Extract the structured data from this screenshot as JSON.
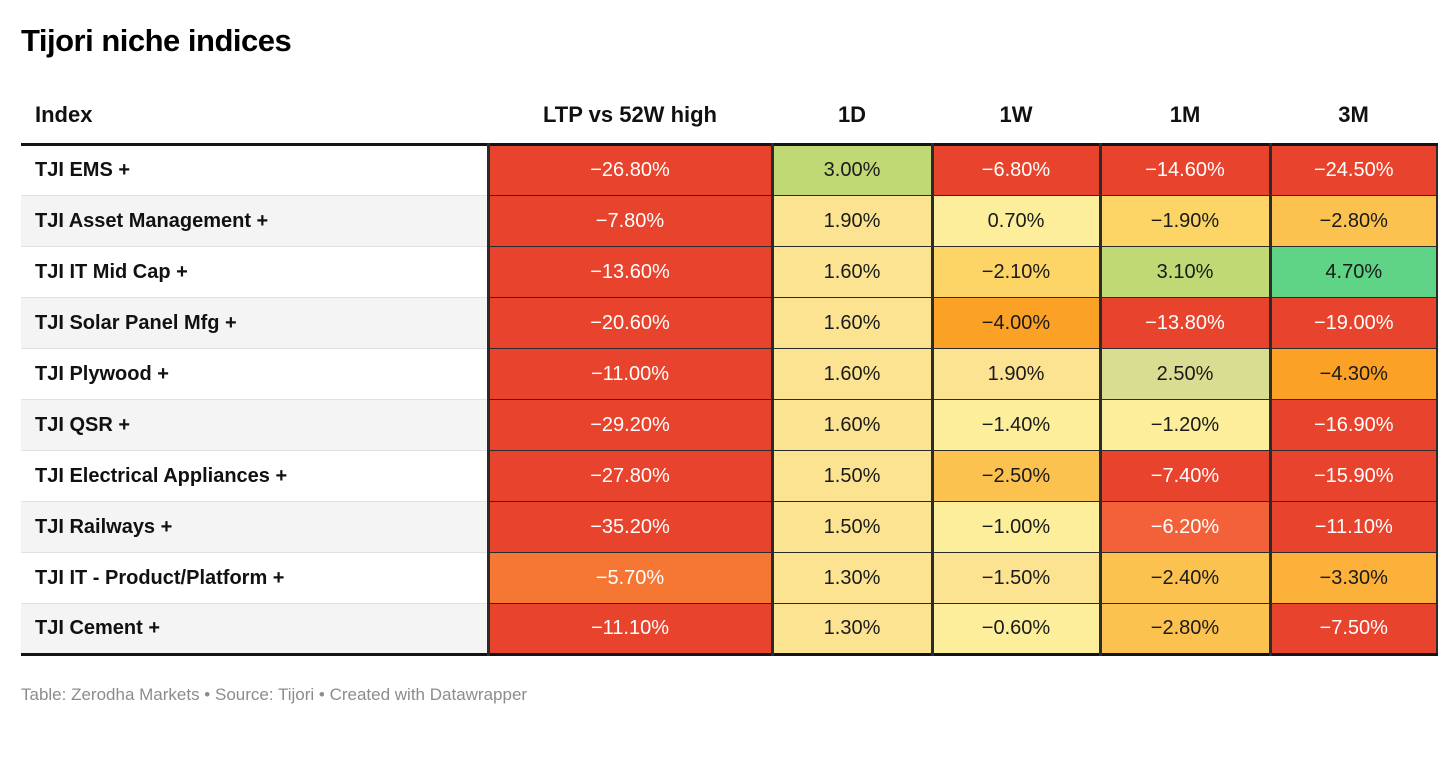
{
  "title": "Tijori niche indices",
  "footer": "Table: Zerodha Markets • Source: Tijori • Created with Datawrapper",
  "palette": {
    "strong_negative_red": "#e8432d",
    "red_orange": "#f2613a",
    "orange_red": "#f57733",
    "orange": "#fba226",
    "orange_amber": "#fcb13a",
    "amber_orange": "#fcc250",
    "amber": "#fcd566",
    "light_amber": "#fce391",
    "pale_yellow": "#fcee9a",
    "pale_yellow_green": "#d9dd92",
    "yellow_green": "#c0d975",
    "strong_positive_green": "#5fd487",
    "text_dark": "#1a1a1a",
    "text_light": "#ffffff"
  },
  "table": {
    "columns": [
      "Index",
      "LTP vs 52W high",
      "1D",
      "1W",
      "1M",
      "3M"
    ],
    "rows": [
      {
        "index": "TJI EMS +",
        "cells": [
          {
            "text": "−26.80%",
            "bg": "#e8432d",
            "fg": "#ffffff"
          },
          {
            "text": "3.00%",
            "bg": "#c0d975",
            "fg": "#1a1a1a"
          },
          {
            "text": "−6.80%",
            "bg": "#e8432d",
            "fg": "#ffffff"
          },
          {
            "text": "−14.60%",
            "bg": "#e8432d",
            "fg": "#ffffff"
          },
          {
            "text": "−24.50%",
            "bg": "#e8432d",
            "fg": "#ffffff"
          }
        ]
      },
      {
        "index": "TJI Asset Management +",
        "cells": [
          {
            "text": "−7.80%",
            "bg": "#e8432d",
            "fg": "#ffffff"
          },
          {
            "text": "1.90%",
            "bg": "#fce391",
            "fg": "#1a1a1a"
          },
          {
            "text": "0.70%",
            "bg": "#fcee9a",
            "fg": "#1a1a1a"
          },
          {
            "text": "−1.90%",
            "bg": "#fcd566",
            "fg": "#1a1a1a"
          },
          {
            "text": "−2.80%",
            "bg": "#fcc250",
            "fg": "#1a1a1a"
          }
        ]
      },
      {
        "index": "TJI IT Mid Cap +",
        "cells": [
          {
            "text": "−13.60%",
            "bg": "#e8432d",
            "fg": "#ffffff"
          },
          {
            "text": "1.60%",
            "bg": "#fce391",
            "fg": "#1a1a1a"
          },
          {
            "text": "−2.10%",
            "bg": "#fcd566",
            "fg": "#1a1a1a"
          },
          {
            "text": "3.10%",
            "bg": "#c0d975",
            "fg": "#1a1a1a"
          },
          {
            "text": "4.70%",
            "bg": "#5fd487",
            "fg": "#1a1a1a"
          }
        ]
      },
      {
        "index": "TJI Solar Panel Mfg +",
        "cells": [
          {
            "text": "−20.60%",
            "bg": "#e8432d",
            "fg": "#ffffff"
          },
          {
            "text": "1.60%",
            "bg": "#fce391",
            "fg": "#1a1a1a"
          },
          {
            "text": "−4.00%",
            "bg": "#fba226",
            "fg": "#1a1a1a"
          },
          {
            "text": "−13.80%",
            "bg": "#e8432d",
            "fg": "#ffffff"
          },
          {
            "text": "−19.00%",
            "bg": "#e8432d",
            "fg": "#ffffff"
          }
        ]
      },
      {
        "index": "TJI Plywood +",
        "cells": [
          {
            "text": "−11.00%",
            "bg": "#e8432d",
            "fg": "#ffffff"
          },
          {
            "text": "1.60%",
            "bg": "#fce391",
            "fg": "#1a1a1a"
          },
          {
            "text": "1.90%",
            "bg": "#fce391",
            "fg": "#1a1a1a"
          },
          {
            "text": "2.50%",
            "bg": "#d9dd92",
            "fg": "#1a1a1a"
          },
          {
            "text": "−4.30%",
            "bg": "#fba226",
            "fg": "#1a1a1a"
          }
        ]
      },
      {
        "index": "TJI QSR +",
        "cells": [
          {
            "text": "−29.20%",
            "bg": "#e8432d",
            "fg": "#ffffff"
          },
          {
            "text": "1.60%",
            "bg": "#fce391",
            "fg": "#1a1a1a"
          },
          {
            "text": "−1.40%",
            "bg": "#fcee9a",
            "fg": "#1a1a1a"
          },
          {
            "text": "−1.20%",
            "bg": "#fcee9a",
            "fg": "#1a1a1a"
          },
          {
            "text": "−16.90%",
            "bg": "#e8432d",
            "fg": "#ffffff"
          }
        ]
      },
      {
        "index": "TJI Electrical Appliances +",
        "cells": [
          {
            "text": "−27.80%",
            "bg": "#e8432d",
            "fg": "#ffffff"
          },
          {
            "text": "1.50%",
            "bg": "#fce391",
            "fg": "#1a1a1a"
          },
          {
            "text": "−2.50%",
            "bg": "#fcc250",
            "fg": "#1a1a1a"
          },
          {
            "text": "−7.40%",
            "bg": "#e8432d",
            "fg": "#ffffff"
          },
          {
            "text": "−15.90%",
            "bg": "#e8432d",
            "fg": "#ffffff"
          }
        ]
      },
      {
        "index": "TJI Railways +",
        "cells": [
          {
            "text": "−35.20%",
            "bg": "#e8432d",
            "fg": "#ffffff"
          },
          {
            "text": "1.50%",
            "bg": "#fce391",
            "fg": "#1a1a1a"
          },
          {
            "text": "−1.00%",
            "bg": "#fcee9a",
            "fg": "#1a1a1a"
          },
          {
            "text": "−6.20%",
            "bg": "#f2613a",
            "fg": "#ffffff"
          },
          {
            "text": "−11.10%",
            "bg": "#e8432d",
            "fg": "#ffffff"
          }
        ]
      },
      {
        "index": "TJI IT - Product/Platform +",
        "cells": [
          {
            "text": "−5.70%",
            "bg": "#f57733",
            "fg": "#ffffff"
          },
          {
            "text": "1.30%",
            "bg": "#fce391",
            "fg": "#1a1a1a"
          },
          {
            "text": "−1.50%",
            "bg": "#fce391",
            "fg": "#1a1a1a"
          },
          {
            "text": "−2.40%",
            "bg": "#fcc250",
            "fg": "#1a1a1a"
          },
          {
            "text": "−3.30%",
            "bg": "#fcb13a",
            "fg": "#1a1a1a"
          }
        ]
      },
      {
        "index": "TJI Cement +",
        "cells": [
          {
            "text": "−11.10%",
            "bg": "#e8432d",
            "fg": "#ffffff"
          },
          {
            "text": "1.30%",
            "bg": "#fce391",
            "fg": "#1a1a1a"
          },
          {
            "text": "−0.60%",
            "bg": "#fcee9a",
            "fg": "#1a1a1a"
          },
          {
            "text": "−2.80%",
            "bg": "#fcc250",
            "fg": "#1a1a1a"
          },
          {
            "text": "−7.50%",
            "bg": "#e8432d",
            "fg": "#ffffff"
          }
        ]
      }
    ]
  },
  "chart_data": {
    "type": "table",
    "title": "Tijori niche indices",
    "columns": [
      "Index",
      "LTP vs 52W high",
      "1D",
      "1W",
      "1M",
      "3M"
    ],
    "unit": "%",
    "rows": [
      [
        "TJI EMS +",
        -26.8,
        3.0,
        -6.8,
        -14.6,
        -24.5
      ],
      [
        "TJI Asset Management +",
        -7.8,
        1.9,
        0.7,
        -1.9,
        -2.8
      ],
      [
        "TJI IT Mid Cap +",
        -13.6,
        1.6,
        -2.1,
        3.1,
        4.7
      ],
      [
        "TJI Solar Panel Mfg +",
        -20.6,
        1.6,
        -4.0,
        -13.8,
        -19.0
      ],
      [
        "TJI Plywood +",
        -11.0,
        1.6,
        1.9,
        2.5,
        -4.3
      ],
      [
        "TJI QSR +",
        -29.2,
        1.6,
        -1.4,
        -1.2,
        -16.9
      ],
      [
        "TJI Electrical Appliances +",
        -27.8,
        1.5,
        -2.5,
        -7.4,
        -15.9
      ],
      [
        "TJI Railways +",
        -35.2,
        1.5,
        -1.0,
        -6.2,
        -11.1
      ],
      [
        "TJI IT - Product/Platform +",
        -5.7,
        1.3,
        -1.5,
        -2.4,
        -3.3
      ],
      [
        "TJI Cement +",
        -11.1,
        1.3,
        -0.6,
        -2.8,
        -7.5
      ]
    ],
    "color_scale": "diverging green→yellow→orange→red heatmap on cell backgrounds",
    "footer": "Table: Zerodha Markets • Source: Tijori • Created with Datawrapper"
  }
}
